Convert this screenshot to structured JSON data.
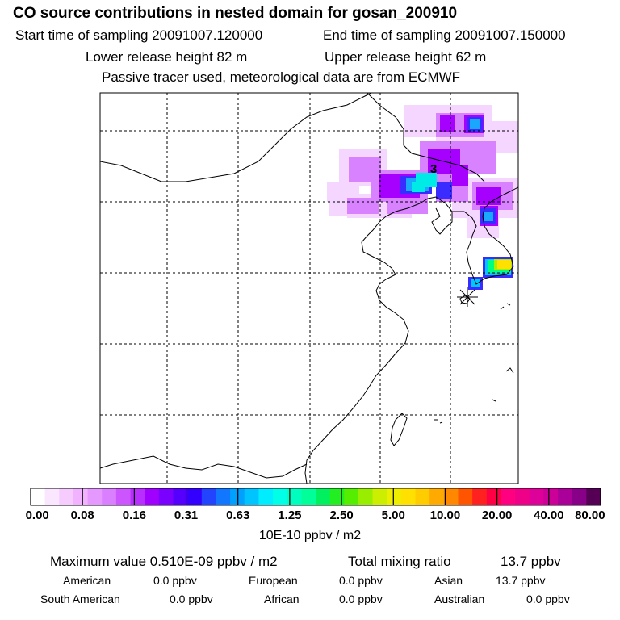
{
  "header": {
    "title": "CO  source contributions in nested domain for gosan_200910",
    "start_time": "Start time of sampling 20091007.120000",
    "end_time": "End time of sampling 20091007.150000",
    "lower_release": "Lower release height   82 m",
    "upper_release": "Upper release height   62 m",
    "note": "Passive tracer used, meteorological data are from ECMWF"
  },
  "map": {
    "label": "3",
    "colorbar": {
      "colors": [
        "#ffffff",
        "#fbe6ff",
        "#f6ccff",
        "#f1b3ff",
        "#e599ff",
        "#d97fff",
        "#cc55ff",
        "#b82eff",
        "#9f00ff",
        "#7a00ff",
        "#5500ff",
        "#3300ff",
        "#2244ff",
        "#1177ff",
        "#00a0ff",
        "#00c4ff",
        "#00ecff",
        "#00ffe6",
        "#00ffbf",
        "#00ff99",
        "#00f060",
        "#22ee22",
        "#55ee00",
        "#99ee00",
        "#ccee00",
        "#eeee00",
        "#ffe000",
        "#ffcc00",
        "#ffaa00",
        "#ff8800",
        "#ff5500",
        "#ff2020",
        "#ff0044",
        "#ff0080",
        "#ee0088",
        "#dd0099",
        "#cc0099",
        "#aa0099",
        "#880088",
        "#550055"
      ],
      "ticks": [
        "0.00",
        "0.08",
        "0.16",
        "0.31",
        "0.63",
        "1.25",
        "2.50",
        "5.00",
        "10.00",
        "20.00",
        "40.00",
        "80.00"
      ],
      "unit": "10E-10 ppbv / m2"
    }
  },
  "summary": {
    "max_label": "Maximum value  0.510E-09 ppbv / m2",
    "total_label": "Total mixing ratio",
    "total_value": "13.7 ppbv",
    "american_label": "American",
    "american_value": "0.0 ppbv",
    "european_label": "European",
    "european_value": "0.0 ppbv",
    "asian_label": "Asian",
    "asian_value": "13.7 ppbv",
    "south_american_label": "South American",
    "south_american_value": "0.0 ppbv",
    "african_label": "African",
    "african_value": "0.0 ppbv",
    "australian_label": "Australian",
    "australian_value": "0.0 ppbv"
  }
}
